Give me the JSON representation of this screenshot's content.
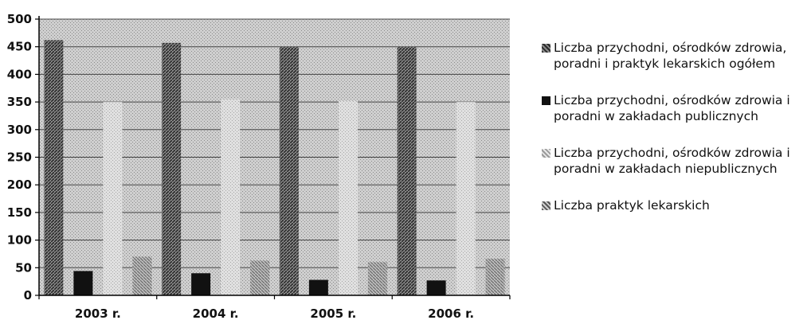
{
  "chart_data": {
    "type": "bar",
    "categories": [
      "2003 r.",
      "2004 r.",
      "2005 r.",
      "2006 r."
    ],
    "series": [
      {
        "name": "Liczba przychodni, ośrodków zdrowia, poradni i praktyk lekarskich ogółem",
        "values": [
          462,
          457,
          450,
          450
        ],
        "pattern": "dark-hatch",
        "color": "#3a3a3a"
      },
      {
        "name": "Liczba przychodni, ośrodków zdrowia i poradni w zakładach publicznych",
        "values": [
          44,
          40,
          28,
          27
        ],
        "pattern": "solid",
        "color": "#111111"
      },
      {
        "name": "Liczba przychodni, ośrodków zdrowia i poradni w zakładach niepublicznych",
        "values": [
          350,
          355,
          352,
          350
        ],
        "pattern": "light-hatch",
        "color": "#c4c4c4"
      },
      {
        "name": "Liczba praktyk lekarskich",
        "values": [
          70,
          63,
          60,
          66
        ],
        "pattern": "medium-hatch",
        "color": "#9a9a9a"
      }
    ],
    "ylim": [
      0,
      500
    ],
    "yticks": [
      "0",
      "50",
      "100",
      "150",
      "200",
      "250",
      "300",
      "350",
      "400",
      "450",
      "500"
    ],
    "grid": true,
    "legend_position": "right"
  }
}
